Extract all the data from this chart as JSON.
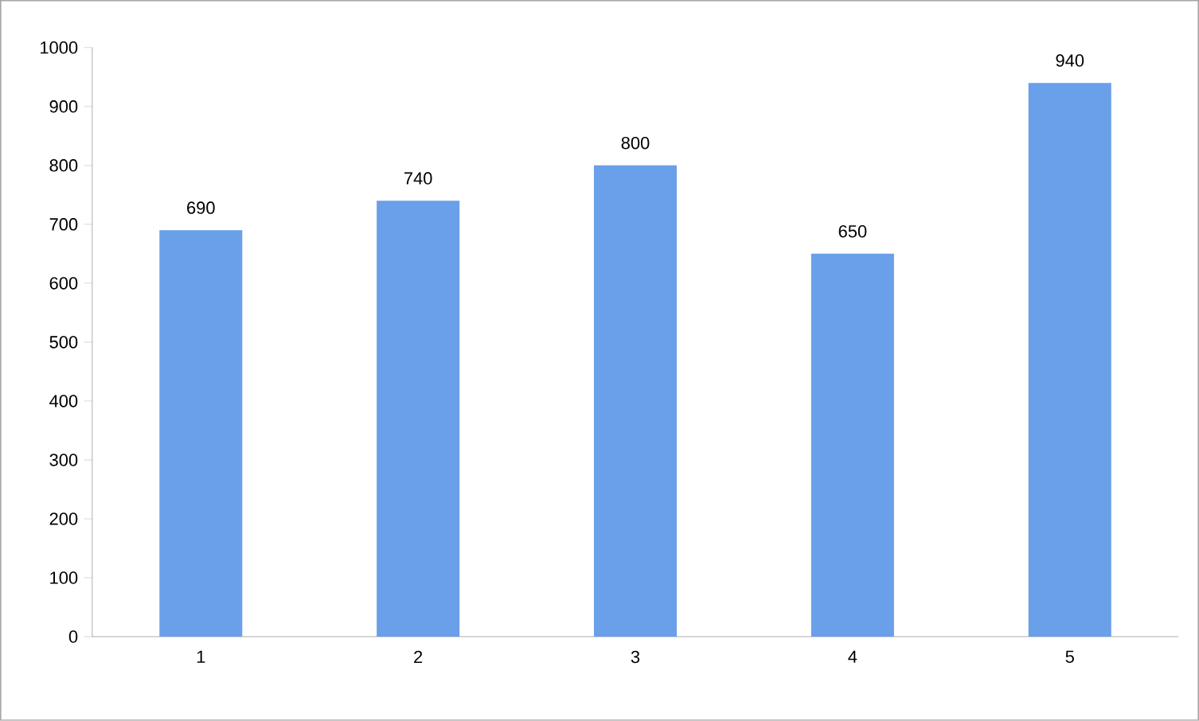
{
  "chart_data": {
    "type": "bar",
    "categories": [
      "1",
      "2",
      "3",
      "4",
      "5"
    ],
    "values": [
      690,
      740,
      800,
      650,
      940
    ],
    "color": "#6a9fe9",
    "ylim": [
      0,
      1000
    ],
    "yticks": [
      0,
      100,
      200,
      300,
      400,
      500,
      600,
      700,
      800,
      900,
      1000
    ],
    "data_labels": true
  }
}
